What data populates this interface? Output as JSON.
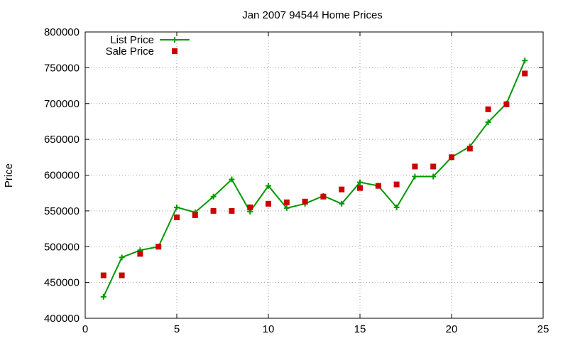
{
  "chart_data": {
    "type": "line",
    "title": "Jan 2007 94544 Home Prices",
    "xlabel": "",
    "ylabel": "Price",
    "xlim": [
      0,
      25
    ],
    "ylim": [
      400000,
      800000
    ],
    "xticks": [
      0,
      5,
      10,
      15,
      20,
      25
    ],
    "yticks": [
      400000,
      450000,
      500000,
      550000,
      600000,
      650000,
      700000,
      750000,
      800000
    ],
    "grid": true,
    "legend_position": "top-left",
    "series": [
      {
        "name": "List Price",
        "style": "line-with-plus-markers",
        "color": "#009900",
        "x": [
          1,
          2,
          3,
          4,
          5,
          6,
          7,
          8,
          9,
          10,
          11,
          12,
          13,
          14,
          15,
          16,
          17,
          18,
          19,
          20,
          21,
          22,
          23,
          24
        ],
        "y": [
          430000,
          485000,
          495000,
          500000,
          555000,
          548000,
          570000,
          594000,
          549000,
          585000,
          554000,
          560000,
          571000,
          560000,
          590000,
          585000,
          555000,
          598000,
          598000,
          625000,
          640000,
          674000,
          700000,
          760000
        ]
      },
      {
        "name": "Sale Price",
        "style": "square-markers",
        "color": "#cc0000",
        "x": [
          1,
          2,
          3,
          4,
          5,
          6,
          7,
          8,
          9,
          10,
          11,
          12,
          13,
          14,
          15,
          16,
          17,
          18,
          19,
          20,
          21,
          22,
          23,
          24
        ],
        "y": [
          460000,
          460000,
          490000,
          500000,
          541000,
          544000,
          550000,
          550000,
          555000,
          560000,
          562000,
          563000,
          570000,
          580000,
          582000,
          585000,
          587000,
          612000,
          612000,
          625000,
          637000,
          692000,
          699000,
          742000
        ]
      }
    ]
  }
}
